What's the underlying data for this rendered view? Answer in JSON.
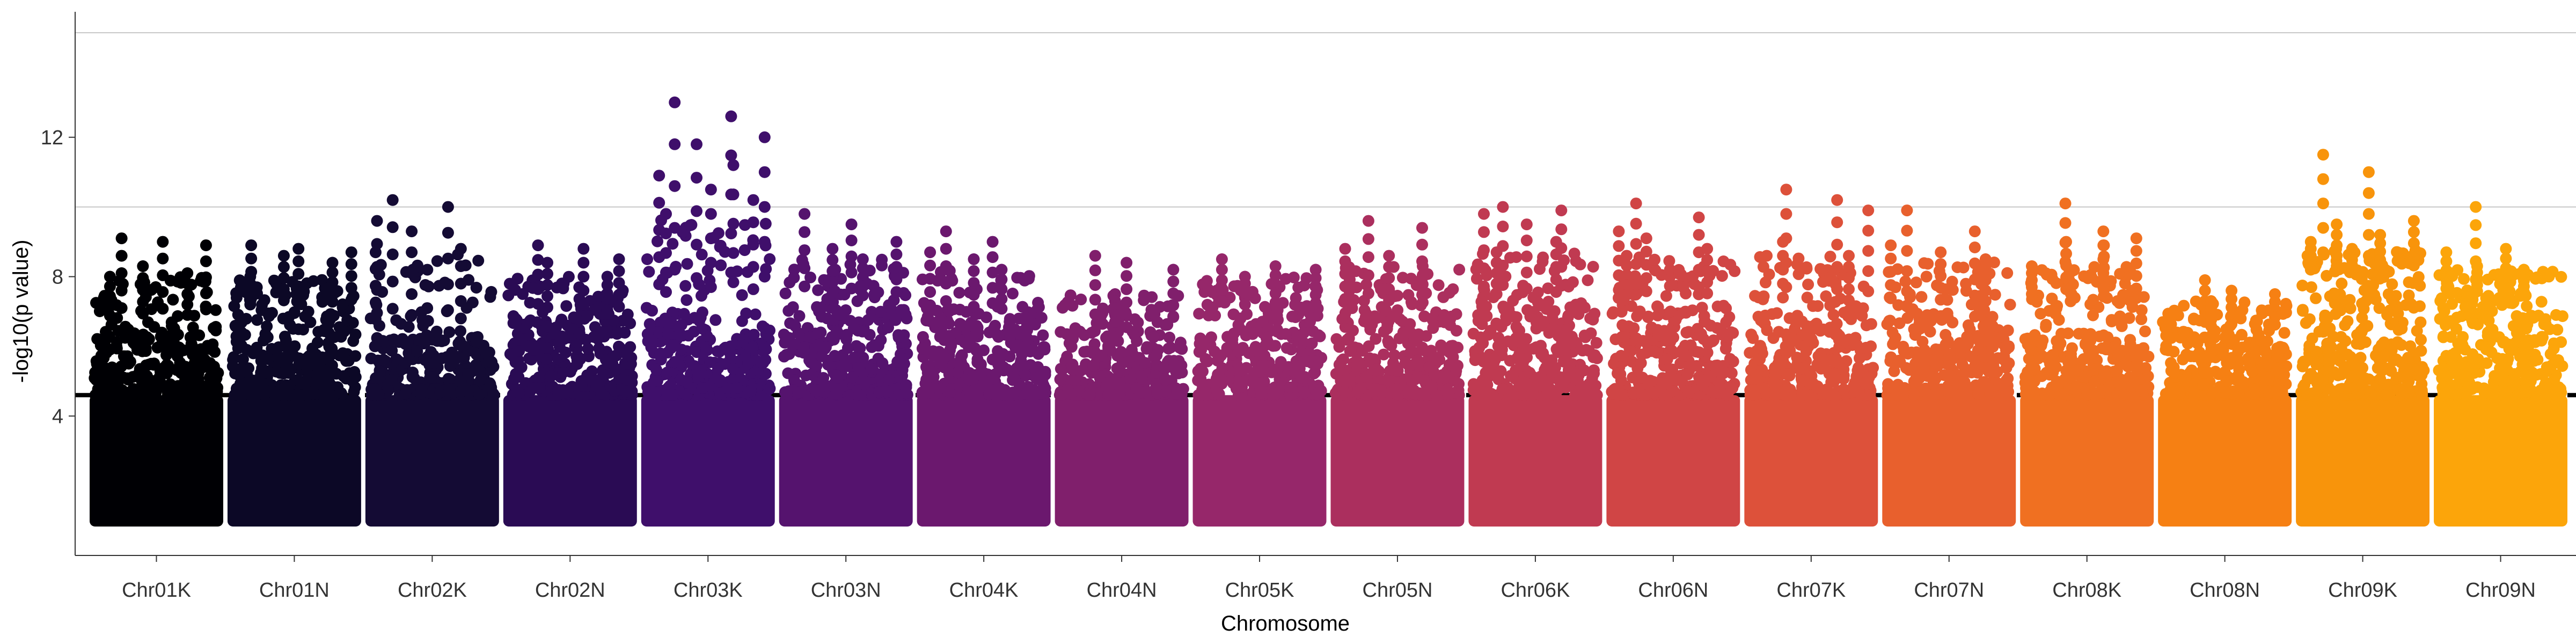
{
  "chart_data": {
    "type": "scatter",
    "title": "",
    "xlabel": "Chromosome",
    "ylabel": "-log10(p value)",
    "ylim": [
      0,
      15.6
    ],
    "y_ticks": [
      4,
      8,
      12
    ],
    "grid": "horizontal lines at 10 and 15",
    "threshold": 4.6,
    "chromosomes": [
      {
        "name": "Chr01K",
        "color": "#000004",
        "base_max": 6.6,
        "peaks": [
          9.1,
          9.0,
          8.9,
          8.3,
          8.1,
          8.0
        ]
      },
      {
        "name": "Chr01N",
        "color": "#0C0826",
        "base_max": 7.0,
        "peaks": [
          8.9,
          8.8,
          8.7,
          8.6,
          8.4,
          8.0
        ]
      },
      {
        "name": "Chr02K",
        "color": "#140B34",
        "base_max": 6.3,
        "peaks": [
          10.2,
          10.0,
          9.6,
          9.3,
          8.8,
          8.7
        ]
      },
      {
        "name": "Chr02N",
        "color": "#2A0B54",
        "base_max": 6.8,
        "peaks": [
          8.9,
          8.8,
          8.5,
          8.4,
          8.0
        ]
      },
      {
        "name": "Chr03K",
        "color": "#3F0F6B",
        "base_max": 7.0,
        "peaks": [
          13.0,
          12.6,
          12.0,
          11.8,
          11.2,
          10.9,
          10.5,
          10.2,
          9.8
        ]
      },
      {
        "name": "Chr03N",
        "color": "#55136E",
        "base_max": 7.2,
        "peaks": [
          9.8,
          9.5,
          9.0,
          8.8,
          8.5
        ]
      },
      {
        "name": "Chr04K",
        "color": "#6B186E",
        "base_max": 6.8,
        "peaks": [
          9.3,
          9.0,
          8.7,
          8.5,
          8.2
        ]
      },
      {
        "name": "Chr04N",
        "color": "#801F6C",
        "base_max": 6.5,
        "peaks": [
          8.6,
          8.4,
          8.2,
          7.5
        ]
      },
      {
        "name": "Chr05K",
        "color": "#96276A",
        "base_max": 7.0,
        "peaks": [
          8.5,
          8.3,
          8.2,
          8.0
        ]
      },
      {
        "name": "Chr05N",
        "color": "#AB2F5E",
        "base_max": 7.0,
        "peaks": [
          9.6,
          9.4,
          8.8,
          8.6,
          8.3
        ]
      },
      {
        "name": "Chr06K",
        "color": "#C03A51",
        "base_max": 7.2,
        "peaks": [
          10.0,
          9.9,
          9.8,
          9.5,
          9.0,
          8.7
        ]
      },
      {
        "name": "Chr06N",
        "color": "#D04545",
        "base_max": 7.2,
        "peaks": [
          10.1,
          9.7,
          9.3,
          9.1,
          8.8,
          8.6
        ]
      },
      {
        "name": "Chr07K",
        "color": "#DD513A",
        "base_max": 7.0,
        "peaks": [
          10.5,
          10.2,
          9.9,
          9.0,
          8.6
        ]
      },
      {
        "name": "Chr07N",
        "color": "#E8602D",
        "base_max": 7.0,
        "peaks": [
          9.9,
          9.3,
          8.9,
          8.7,
          8.5
        ]
      },
      {
        "name": "Chr08K",
        "color": "#F07021",
        "base_max": 7.3,
        "peaks": [
          10.1,
          9.3,
          9.1,
          9.0,
          8.9,
          8.3
        ]
      },
      {
        "name": "Chr08N",
        "color": "#F68013",
        "base_max": 6.4,
        "peaks": [
          7.9,
          7.6,
          7.5,
          7.3
        ]
      },
      {
        "name": "Chr09K",
        "color": "#F8940B",
        "base_max": 8.0,
        "peaks": [
          11.5,
          11.0,
          9.6,
          9.5,
          9.2,
          9.0,
          8.8
        ]
      },
      {
        "name": "Chr09N",
        "color": "#FCA50A",
        "base_max": 7.4,
        "peaks": [
          10.0,
          8.8,
          8.7,
          8.3,
          8.2
        ]
      }
    ]
  }
}
